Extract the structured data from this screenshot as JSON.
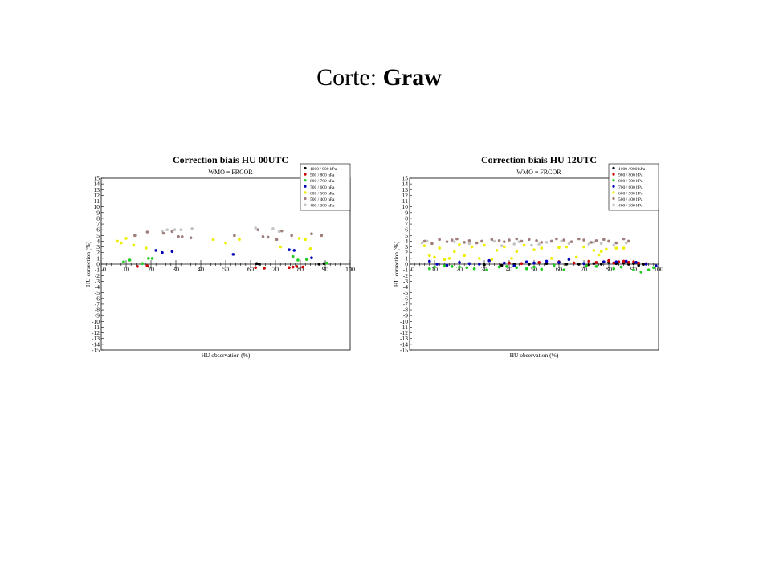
{
  "slide": {
    "title_prefix": "Corte: ",
    "title_bold": "Graw"
  },
  "chart_data": [
    {
      "type": "scatter",
      "title": "Correction biais HU 00UTC",
      "subtitle": "WMO = FRCOR",
      "xlabel": "HU observation (%)",
      "ylabel": "HU correction (%)",
      "xlim": [
        0,
        100
      ],
      "ylim": [
        -15,
        15
      ],
      "xticks": [
        10,
        20,
        30,
        40,
        50,
        60,
        70,
        80,
        90,
        100
      ],
      "legend_position": "top-right",
      "series": [
        {
          "name": "1000 / 900 hPa",
          "color": "#000000",
          "points": [
            [
              62.5,
              0.1
            ],
            [
              63.5,
              0.0
            ],
            [
              87.5,
              0.0
            ],
            [
              89.5,
              0.1
            ]
          ]
        },
        {
          "name": "900 / 800 hPa",
          "color": "#cc0000",
          "points": [
            [
              14.5,
              -0.4
            ],
            [
              18.5,
              -0.3
            ],
            [
              62,
              -0.6
            ],
            [
              65.5,
              -0.7
            ],
            [
              75.5,
              -0.6
            ],
            [
              77,
              -0.5
            ],
            [
              78.5,
              -0.4
            ],
            [
              81,
              -0.5
            ]
          ]
        },
        {
          "name": "800 / 700 hPa",
          "color": "#22cc22",
          "points": [
            [
              9,
              0.4
            ],
            [
              11.5,
              0.7
            ],
            [
              16.5,
              0.1
            ],
            [
              19,
              1.0
            ],
            [
              20.5,
              1.0
            ],
            [
              77,
              1.3
            ],
            [
              79,
              0.7
            ],
            [
              82.5,
              0.8
            ],
            [
              90.5,
              0.2
            ]
          ]
        },
        {
          "name": "700 / 600 hPa",
          "color": "#0000bb",
          "points": [
            [
              22,
              2.4
            ],
            [
              24.5,
              2.0
            ],
            [
              28.5,
              2.2
            ],
            [
              53,
              1.7
            ],
            [
              75.5,
              2.5
            ],
            [
              77.5,
              2.4
            ],
            [
              84.5,
              1.1
            ]
          ]
        },
        {
          "name": "600 / 500 hPa",
          "color": "#eeee00",
          "points": [
            [
              6.5,
              4.0
            ],
            [
              8,
              3.7
            ],
            [
              10,
              4.5
            ],
            [
              13,
              3.3
            ],
            [
              18,
              2.8
            ],
            [
              45,
              4.3
            ],
            [
              50,
              3.7
            ],
            [
              55.5,
              4.3
            ],
            [
              72,
              3.0
            ],
            [
              79.5,
              4.5
            ],
            [
              82,
              4.3
            ],
            [
              84,
              2.7
            ]
          ]
        },
        {
          "name": "500 / 400 hPa",
          "color": "#a07d7d",
          "points": [
            [
              13.5,
              5.0
            ],
            [
              18.5,
              5.6
            ],
            [
              25,
              5.4
            ],
            [
              28.5,
              5.7
            ],
            [
              31,
              4.8
            ],
            [
              32.5,
              4.8
            ],
            [
              36,
              4.6
            ],
            [
              53.5,
              5.0
            ],
            [
              63,
              6.0
            ],
            [
              65,
              4.8
            ],
            [
              67,
              4.7
            ],
            [
              70.5,
              4.3
            ],
            [
              72.5,
              5.8
            ],
            [
              76.5,
              5.0
            ],
            [
              84.5,
              5.3
            ],
            [
              88.5,
              5.0
            ]
          ]
        },
        {
          "name": "400 / 300 hPa",
          "color": "#c4c4c4",
          "points": [
            [
              24.5,
              5.8
            ],
            [
              26.5,
              6.0
            ],
            [
              29.5,
              6.0
            ],
            [
              32,
              6.0
            ],
            [
              36.5,
              6.2
            ],
            [
              62,
              6.3
            ],
            [
              69,
              6.2
            ],
            [
              71.5,
              5.7
            ]
          ]
        }
      ]
    },
    {
      "type": "scatter",
      "title": "Correction biais HU 12UTC",
      "subtitle": "WMO = FRCOR",
      "xlabel": "HU observation (%)",
      "ylabel": "HU correction (%)",
      "xlim": [
        0,
        100
      ],
      "ylim": [
        -15,
        15
      ],
      "xticks": [
        10,
        20,
        30,
        40,
        50,
        60,
        70,
        80,
        90,
        100
      ],
      "legend_position": "top-right",
      "series": [
        {
          "name": "1000 / 900 hPa",
          "color": "#000000",
          "points": [
            [
              30,
              -0.1
            ],
            [
              37,
              -0.2
            ],
            [
              42,
              0.0
            ],
            [
              48,
              0.0
            ],
            [
              55,
              0.1
            ],
            [
              63,
              0.0
            ],
            [
              68,
              0.0
            ],
            [
              72,
              -0.1
            ],
            [
              74,
              0.1
            ],
            [
              77,
              0.0
            ],
            [
              80,
              0.3
            ],
            [
              83,
              0.1
            ],
            [
              86,
              0.2
            ],
            [
              88,
              0.0
            ],
            [
              90,
              0.1
            ],
            [
              92,
              -0.2
            ],
            [
              94,
              0.0
            ]
          ]
        },
        {
          "name": "900 / 800 hPa",
          "color": "#cc0000",
          "points": [
            [
              40,
              0.2
            ],
            [
              45,
              0.1
            ],
            [
              52,
              0.3
            ],
            [
              60,
              0.4
            ],
            [
              66,
              0.2
            ],
            [
              72,
              0.5
            ],
            [
              75,
              0.3
            ],
            [
              78,
              0.4
            ],
            [
              80,
              0.6
            ],
            [
              82,
              0.2
            ],
            [
              84,
              0.4
            ],
            [
              86,
              0.5
            ],
            [
              88,
              0.3
            ],
            [
              90,
              0.4
            ],
            [
              92,
              0.2
            ],
            [
              95,
              0.1
            ]
          ]
        },
        {
          "name": "800 / 700 hPa",
          "color": "#22cc22",
          "points": [
            [
              8,
              -0.8
            ],
            [
              10,
              -0.5
            ],
            [
              14,
              -0.3
            ],
            [
              17,
              -0.4
            ],
            [
              20,
              -0.5
            ],
            [
              23,
              -0.6
            ],
            [
              26,
              -0.8
            ],
            [
              31,
              -1.0
            ],
            [
              36,
              -0.5
            ],
            [
              39,
              -0.4
            ],
            [
              43,
              -0.6
            ],
            [
              47,
              -0.8
            ],
            [
              50,
              -0.5
            ],
            [
              53,
              -0.9
            ],
            [
              58,
              -0.2
            ],
            [
              62,
              -1.0
            ],
            [
              71,
              -0.3
            ],
            [
              75,
              -0.4
            ],
            [
              82,
              -0.8
            ],
            [
              85,
              -0.5
            ],
            [
              90,
              -1.0
            ],
            [
              93,
              -1.4
            ],
            [
              96,
              -1.0
            ],
            [
              98,
              -0.6
            ]
          ]
        },
        {
          "name": "700 / 600 hPa",
          "color": "#0000bb",
          "points": [
            [
              8,
              0.5
            ],
            [
              11,
              0.0
            ],
            [
              15,
              -0.2
            ],
            [
              20,
              0.3
            ],
            [
              24,
              0.1
            ],
            [
              28,
              0.0
            ],
            [
              32,
              0.6
            ],
            [
              38,
              0.2
            ],
            [
              42,
              -0.3
            ],
            [
              47,
              0.4
            ],
            [
              50,
              0.2
            ],
            [
              55,
              0.5
            ],
            [
              60,
              0.3
            ],
            [
              64,
              0.8
            ],
            [
              70,
              0.1
            ],
            [
              78,
              0.4
            ],
            [
              83,
              0.4
            ],
            [
              87,
              0.5
            ],
            [
              91,
              0.3
            ],
            [
              95,
              0.0
            ],
            [
              99,
              -0.3
            ]
          ]
        },
        {
          "name": "600 / 500 hPa",
          "color": "#eeee00",
          "points": [
            [
              6,
              3.2
            ],
            [
              8,
              1.5
            ],
            [
              10,
              1.2
            ],
            [
              12,
              2.8
            ],
            [
              14,
              0.8
            ],
            [
              16,
              1.0
            ],
            [
              18,
              2.2
            ],
            [
              20,
              3.4
            ],
            [
              22,
              1.5
            ],
            [
              25,
              3.0
            ],
            [
              28,
              1.0
            ],
            [
              30,
              3.3
            ],
            [
              33,
              0.8
            ],
            [
              35,
              2.4
            ],
            [
              38,
              3.0
            ],
            [
              41,
              1.0
            ],
            [
              43,
              2.2
            ],
            [
              46,
              3.3
            ],
            [
              50,
              2.5
            ],
            [
              53,
              2.8
            ],
            [
              57,
              1.0
            ],
            [
              60,
              2.9
            ],
            [
              63,
              3.0
            ],
            [
              67,
              1.2
            ],
            [
              70,
              3.0
            ],
            [
              74,
              2.4
            ],
            [
              76,
              1.6
            ],
            [
              77,
              2.2
            ],
            [
              79,
              2.6
            ],
            [
              83,
              2.8
            ],
            [
              86,
              2.8
            ]
          ]
        },
        {
          "name": "500 / 400 hPa",
          "color": "#a07d7d",
          "points": [
            [
              6,
              4.0
            ],
            [
              9,
              3.6
            ],
            [
              12,
              4.3
            ],
            [
              15,
              3.9
            ],
            [
              17,
              4.2
            ],
            [
              19,
              4.4
            ],
            [
              22,
              3.8
            ],
            [
              24,
              4.1
            ],
            [
              27,
              3.7
            ],
            [
              29,
              4.0
            ],
            [
              33,
              4.3
            ],
            [
              36,
              4.1
            ],
            [
              38,
              3.9
            ],
            [
              40,
              4.2
            ],
            [
              43,
              4.4
            ],
            [
              45,
              4.0
            ],
            [
              48,
              4.3
            ],
            [
              51,
              4.1
            ],
            [
              53,
              3.8
            ],
            [
              57,
              4.0
            ],
            [
              59,
              4.4
            ],
            [
              62,
              4.2
            ],
            [
              65,
              3.9
            ],
            [
              68,
              4.4
            ],
            [
              70,
              4.2
            ],
            [
              73,
              3.8
            ],
            [
              75,
              4.1
            ],
            [
              78,
              4.3
            ],
            [
              80,
              4.0
            ],
            [
              83,
              3.7
            ],
            [
              86,
              4.4
            ],
            [
              88,
              4.0
            ]
          ]
        },
        {
          "name": "400 / 300 hPa",
          "color": "#c4c4c4",
          "points": [
            [
              5,
              3.7
            ],
            [
              7,
              4.0
            ],
            [
              18,
              3.9
            ],
            [
              24,
              3.6
            ],
            [
              34,
              4.0
            ],
            [
              37,
              3.2
            ],
            [
              42,
              3.5
            ],
            [
              44,
              3.9
            ],
            [
              49,
              3.3
            ],
            [
              52,
              3.5
            ],
            [
              55,
              3.8
            ],
            [
              61,
              4.0
            ],
            [
              64,
              3.6
            ],
            [
              72,
              3.5
            ],
            [
              74,
              3.8
            ],
            [
              77,
              3.6
            ],
            [
              82,
              3.3
            ],
            [
              87,
              3.7
            ]
          ]
        }
      ]
    }
  ]
}
